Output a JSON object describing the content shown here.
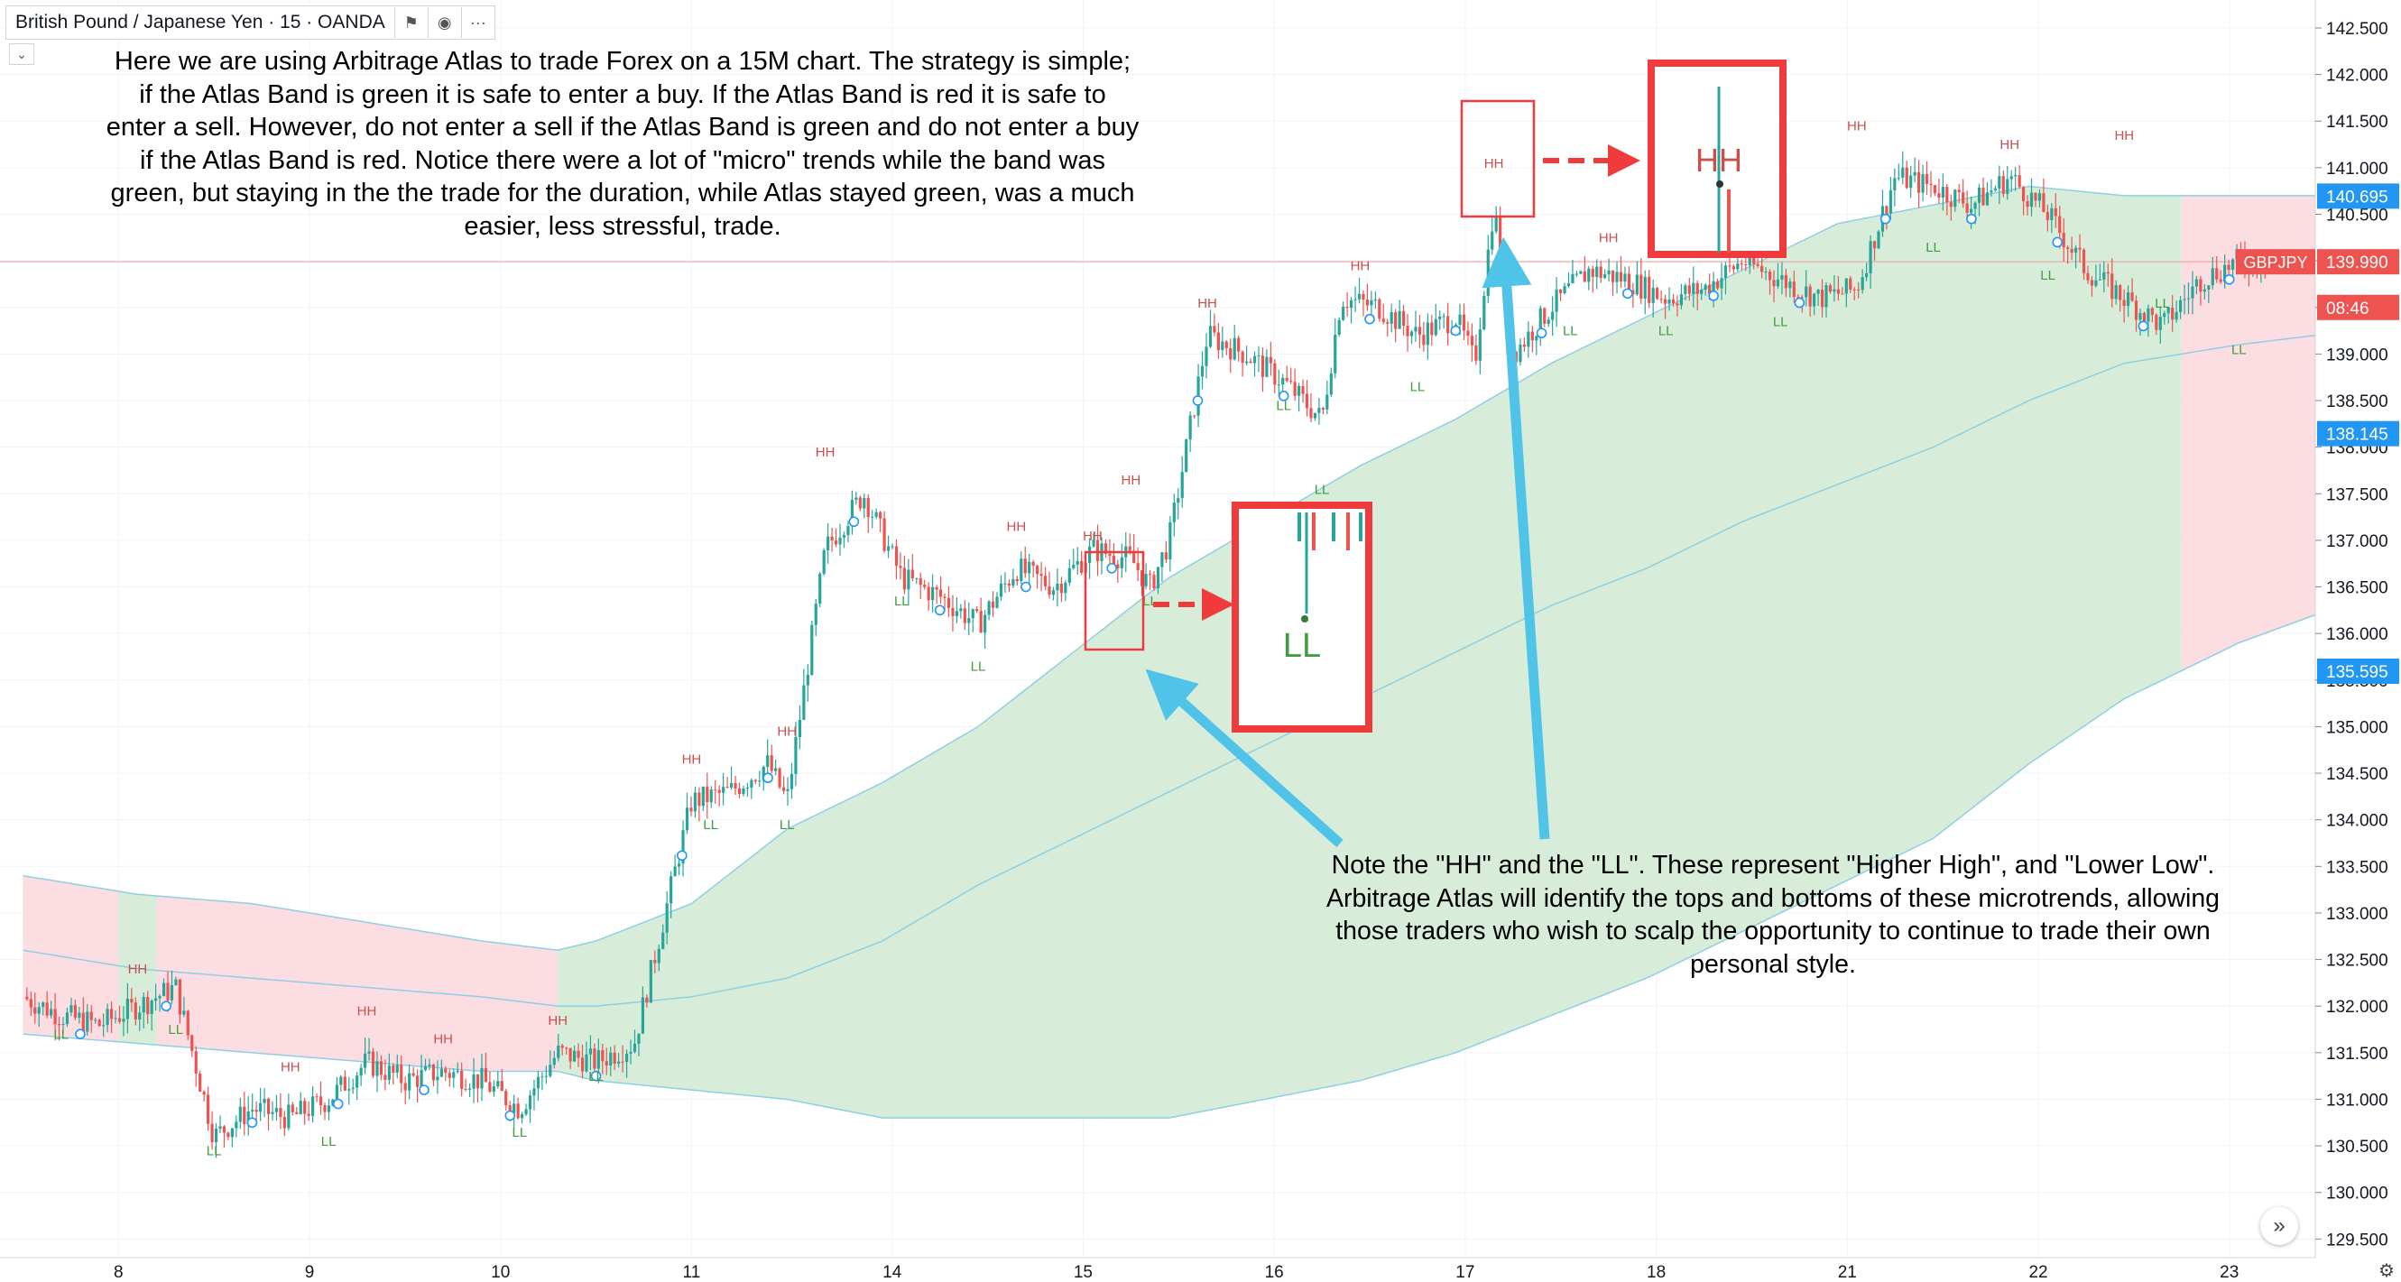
{
  "header": {
    "symbol": "British Pound / Japanese Yen · 15 · OANDA",
    "icons": [
      "flag-icon",
      "eye-icon",
      "more-icon"
    ]
  },
  "annotations": {
    "strategy_text": "Here we are using Arbitrage Atlas to trade Forex on a 15M chart. The strategy is simple;\nif the Atlas Band is green it is safe to enter a buy. If the Atlas Band is red it is safe to\nenter a sell. However, do not enter a sell if the Atlas Band is green and do not enter a buy\nif the Atlas Band is red. Notice there were a lot of \"micro\" trends while the band was\ngreen, but staying in the the trade for the duration, while Atlas stayed green, was a much\neasier, less stressful, trade.",
    "hhll_text": "Note the \"HH\" and the \"LL\". These represent \"Higher High\", and \"Lower Low\".\nArbitrage Atlas will identify the tops and bottoms of these microtrends, allowing\nthose traders who wish to scalp the opportunity to continue to trade their own\npersonal style."
  },
  "chart_data": {
    "type": "line",
    "symbol": "GBPJPY",
    "timeframe": "15",
    "ylim": [
      129.3,
      142.8
    ],
    "y_ticks": [
      129.5,
      130,
      130.5,
      131,
      131.5,
      132,
      132.5,
      133,
      133.5,
      134,
      134.5,
      135,
      135.5,
      136,
      136.5,
      137,
      137.5,
      138,
      138.5,
      139,
      139.5,
      140,
      140.5,
      141,
      141.5,
      142,
      142.5
    ],
    "x_tick_labels": [
      {
        "label": "8",
        "t": 0.5
      },
      {
        "label": "9",
        "t": 1.5
      },
      {
        "label": "10",
        "t": 2.5
      },
      {
        "label": "11",
        "t": 3.5
      },
      {
        "label": "14",
        "t": 4.55
      },
      {
        "label": "15",
        "t": 5.55
      },
      {
        "label": "16",
        "t": 6.55
      },
      {
        "label": "17",
        "t": 7.55
      },
      {
        "label": "18",
        "t": 8.55
      },
      {
        "label": "21",
        "t": 9.55
      },
      {
        "label": "22",
        "t": 10.55
      },
      {
        "label": "23",
        "t": 11.55
      }
    ],
    "price": {
      "t": [
        0,
        0.2,
        0.4,
        0.6,
        0.8,
        1.0,
        1.2,
        1.4,
        1.6,
        1.8,
        2.0,
        2.2,
        2.4,
        2.6,
        2.8,
        3.0,
        3.2,
        3.5,
        3.7,
        3.9,
        4.0,
        4.2,
        4.4,
        4.6,
        4.8,
        5.0,
        5.2,
        5.4,
        5.6,
        5.8,
        5.9,
        6.0,
        6.2,
        6.4,
        6.6,
        6.8,
        6.9,
        7.1,
        7.3,
        7.5,
        7.6,
        7.7,
        7.8,
        8.0,
        8.2,
        8.4,
        8.6,
        8.8,
        9.0,
        9.2,
        9.4,
        9.6,
        9.8,
        10.0,
        10.2,
        10.4,
        10.6,
        10.8,
        11.0,
        11.2,
        11.4,
        11.6,
        11.8
      ],
      "close": [
        132.1,
        131.9,
        131.8,
        132.0,
        132.2,
        130.6,
        130.9,
        130.8,
        131.0,
        131.4,
        131.2,
        131.3,
        131.2,
        130.9,
        131.5,
        131.4,
        131.6,
        134.2,
        134.3,
        134.6,
        134.2,
        136.9,
        137.5,
        136.6,
        136.4,
        136.1,
        136.7,
        136.5,
        136.9,
        136.8,
        136.5,
        137.0,
        139.2,
        139.0,
        138.7,
        138.3,
        139.6,
        139.5,
        139.2,
        139.4,
        138.9,
        140.6,
        139.0,
        139.5,
        139.9,
        139.8,
        139.6,
        139.7,
        140.0,
        139.8,
        139.6,
        139.7,
        140.9,
        140.8,
        140.6,
        140.9,
        140.5,
        139.9,
        139.6,
        139.3,
        139.8,
        140.0,
        139.99
      ],
      "color_up": "#26a69a",
      "color_down": "#ef5350"
    },
    "atlas_band": {
      "t": [
        0,
        0.6,
        1.2,
        1.8,
        2.4,
        2.8,
        3.0,
        3.5,
        4.0,
        4.5,
        5.0,
        5.5,
        6.0,
        6.5,
        7.0,
        7.5,
        8.0,
        8.5,
        9.0,
        9.5,
        10.0,
        10.5,
        11.0,
        11.3,
        11.6,
        12.0
      ],
      "upper": [
        133.4,
        133.2,
        133.1,
        132.9,
        132.7,
        132.6,
        132.7,
        133.1,
        133.9,
        134.4,
        135.0,
        135.8,
        136.6,
        137.2,
        137.8,
        138.3,
        138.9,
        139.4,
        139.9,
        140.4,
        140.6,
        140.8,
        140.7,
        140.7,
        140.7,
        140.7
      ],
      "middle": [
        132.6,
        132.4,
        132.3,
        132.2,
        132.1,
        132.0,
        132.0,
        132.1,
        132.3,
        132.7,
        133.3,
        133.8,
        134.3,
        134.8,
        135.3,
        135.8,
        136.3,
        136.7,
        137.2,
        137.6,
        138.0,
        138.5,
        138.9,
        139.0,
        139.1,
        139.2
      ],
      "lower": [
        131.7,
        131.6,
        131.5,
        131.4,
        131.3,
        131.3,
        131.2,
        131.1,
        131.0,
        130.8,
        130.8,
        130.8,
        130.8,
        131.0,
        131.2,
        131.5,
        131.9,
        132.3,
        132.8,
        133.3,
        133.8,
        134.6,
        135.3,
        135.6,
        135.9,
        136.2
      ],
      "green_color": "#d7ecd9",
      "red_color": "#fbdde2",
      "line_color": "#8ed0e3",
      "segments": [
        {
          "from": 0,
          "to": 0.5,
          "color": "red"
        },
        {
          "from": 0.5,
          "to": 0.7,
          "color": "green"
        },
        {
          "from": 0.7,
          "to": 2.8,
          "color": "red"
        },
        {
          "from": 2.8,
          "to": 11.3,
          "color": "green"
        },
        {
          "from": 11.3,
          "to": 12.0,
          "color": "red"
        }
      ]
    },
    "markers": [
      {
        "label": "HH",
        "t": 0.6,
        "y": 132.35
      },
      {
        "label": "LL",
        "t": 0.2,
        "y": 131.65
      },
      {
        "label": "LL",
        "t": 0.8,
        "y": 131.7
      },
      {
        "label": "LL",
        "t": 1.0,
        "y": 130.4
      },
      {
        "label": "HH",
        "t": 1.4,
        "y": 131.3
      },
      {
        "label": "LL",
        "t": 1.6,
        "y": 130.5
      },
      {
        "label": "HH",
        "t": 1.8,
        "y": 131.9
      },
      {
        "label": "HH",
        "t": 2.2,
        "y": 131.6
      },
      {
        "label": "LL",
        "t": 2.6,
        "y": 130.6
      },
      {
        "label": "HH",
        "t": 2.8,
        "y": 131.8
      },
      {
        "label": "LL",
        "t": 3.0,
        "y": 131.2
      },
      {
        "label": "HH",
        "t": 3.5,
        "y": 134.6
      },
      {
        "label": "LL",
        "t": 3.6,
        "y": 133.9
      },
      {
        "label": "HH",
        "t": 4.0,
        "y": 134.9
      },
      {
        "label": "LL",
        "t": 4.0,
        "y": 133.9
      },
      {
        "label": "HH",
        "t": 4.2,
        "y": 137.9
      },
      {
        "label": "LL",
        "t": 4.6,
        "y": 136.3
      },
      {
        "label": "LL",
        "t": 5.0,
        "y": 135.6
      },
      {
        "label": "HH",
        "t": 5.2,
        "y": 137.1
      },
      {
        "label": "HH",
        "t": 5.6,
        "y": 137.0
      },
      {
        "label": "HH",
        "t": 5.8,
        "y": 137.6
      },
      {
        "label": "LL",
        "t": 5.9,
        "y": 136.3
      },
      {
        "label": "HH",
        "t": 6.2,
        "y": 139.5
      },
      {
        "label": "LL",
        "t": 6.6,
        "y": 138.4
      },
      {
        "label": "LL",
        "t": 6.8,
        "y": 137.5
      },
      {
        "label": "HH",
        "t": 7.0,
        "y": 139.9
      },
      {
        "label": "LL",
        "t": 7.3,
        "y": 138.6
      },
      {
        "label": "HH",
        "t": 7.7,
        "y": 141.0
      },
      {
        "label": "LL",
        "t": 8.1,
        "y": 139.2
      },
      {
        "label": "HH",
        "t": 8.3,
        "y": 140.2
      },
      {
        "label": "LL",
        "t": 8.6,
        "y": 139.2
      },
      {
        "label": "HH",
        "t": 8.9,
        "y": 140.6
      },
      {
        "label": "LL",
        "t": 9.2,
        "y": 139.3
      },
      {
        "label": "HH",
        "t": 9.6,
        "y": 141.4
      },
      {
        "label": "LL",
        "t": 10.0,
        "y": 140.1
      },
      {
        "label": "HH",
        "t": 10.4,
        "y": 141.2
      },
      {
        "label": "LL",
        "t": 10.6,
        "y": 139.8
      },
      {
        "label": "HH",
        "t": 11.0,
        "y": 141.3
      },
      {
        "label": "LL",
        "t": 11.2,
        "y": 139.5
      },
      {
        "label": "LL",
        "t": 11.6,
        "y": 139.0
      }
    ],
    "zoom_insets": [
      {
        "label": "HH",
        "note": "zoom of HH marker near 17"
      },
      {
        "label": "LL",
        "note": "zoom of LL marker near 15"
      }
    ],
    "price_labels": [
      {
        "text": "140.695",
        "value": 140.695,
        "bg": "#2196f3"
      },
      {
        "text": "GBPJPY",
        "value": 139.99,
        "bg": "#ef5350",
        "inside": true
      },
      {
        "text": "139.990",
        "value": 139.99,
        "bg": "#ef5350"
      },
      {
        "text": "08:46",
        "value": 139.5,
        "bg": "#ef5350"
      },
      {
        "text": "138.145",
        "value": 138.145,
        "bg": "#2196f3"
      },
      {
        "text": "135.595",
        "value": 135.595,
        "bg": "#2196f3"
      }
    ],
    "last_price_line": 139.99,
    "grid": true
  }
}
